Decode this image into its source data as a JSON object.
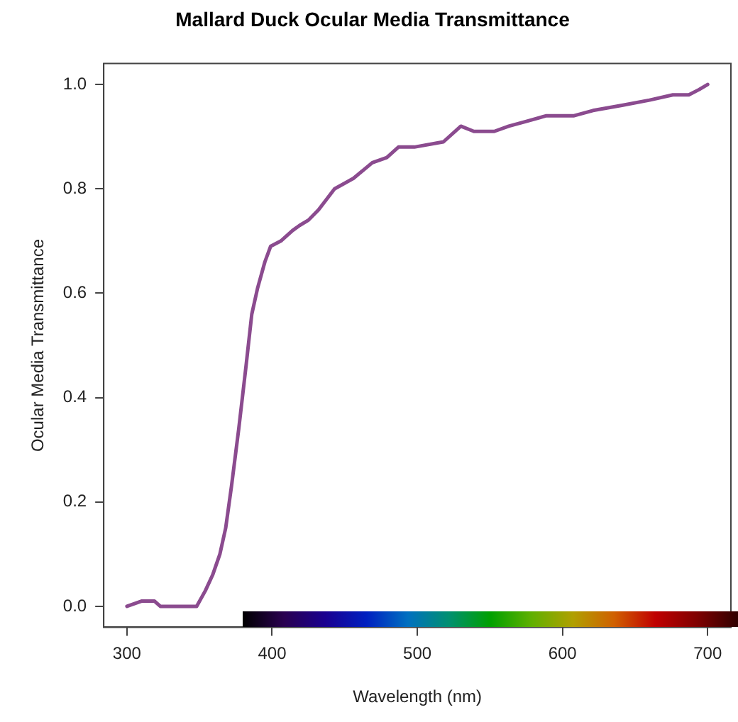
{
  "chart_data": {
    "type": "line",
    "title": "Mallard Duck Ocular Media Transmittance",
    "xlabel": "Wavelength (nm)",
    "ylabel": "Ocular Media Transmittance",
    "x": [
      300,
      310,
      315,
      319,
      323,
      348,
      354,
      359,
      364,
      368,
      372,
      377,
      382,
      386,
      390,
      395,
      399,
      406,
      414,
      419,
      425,
      432,
      443,
      456,
      469,
      479,
      487,
      496,
      498,
      518,
      530,
      539,
      553,
      563,
      576,
      589,
      608,
      621,
      641,
      660,
      676,
      687,
      694,
      700
    ],
    "series": [
      {
        "color": "#8b4b8f",
        "values": [
          0.0,
          0.01,
          0.01,
          0.01,
          0.0,
          0.0,
          0.03,
          0.06,
          0.1,
          0.15,
          0.23,
          0.34,
          0.46,
          0.56,
          0.61,
          0.66,
          0.69,
          0.7,
          0.72,
          0.73,
          0.74,
          0.76,
          0.8,
          0.82,
          0.85,
          0.86,
          0.88,
          0.88,
          0.88,
          0.89,
          0.92,
          0.91,
          0.91,
          0.92,
          0.93,
          0.94,
          0.94,
          0.95,
          0.96,
          0.97,
          0.98,
          0.98,
          0.99,
          1.0
        ]
      }
    ],
    "xlim": [
      284,
      716
    ],
    "ylim": [
      -0.04,
      1.04
    ],
    "xticks": [
      300,
      400,
      500,
      600,
      700
    ],
    "yticks": [
      {
        "value": 0,
        "label": "0.0"
      },
      {
        "value": 0.2,
        "label": "0.2"
      },
      {
        "value": 0.4,
        "label": "0.4"
      },
      {
        "value": 0.6,
        "label": "0.6"
      },
      {
        "value": 0.8,
        "label": "0.8"
      },
      {
        "value": 1,
        "label": "1.0"
      }
    ],
    "grid": false,
    "legend": false,
    "marker": "none",
    "line_style": "solid"
  }
}
